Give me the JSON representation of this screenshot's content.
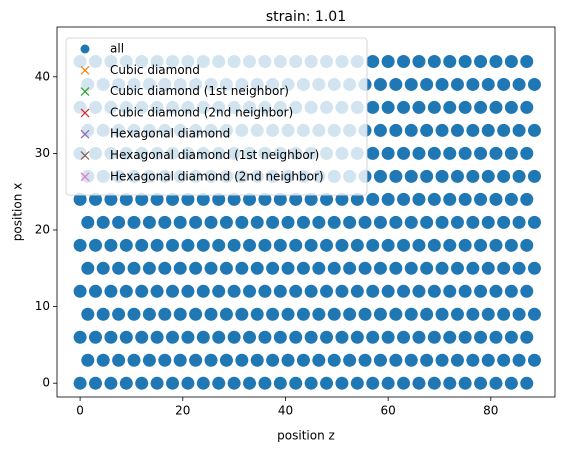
{
  "chart_data": {
    "type": "scatter",
    "title": "strain: 1.01",
    "x_label": "position z",
    "y_label": "position x",
    "xlim": [
      -4.5,
      92.5
    ],
    "ylim": [
      -1.8,
      46.5
    ],
    "xticks": [
      0,
      20,
      40,
      60,
      80
    ],
    "yticks": [
      0,
      10,
      20,
      30,
      40
    ],
    "legend": "upper left",
    "series": [
      {
        "name": "all",
        "color": "#1f77b4",
        "marker": "o",
        "x": [
          0,
          3,
          6,
          9,
          12,
          15,
          18,
          21,
          24,
          27,
          30,
          33,
          36,
          39,
          42,
          45,
          48,
          51,
          54,
          57,
          60,
          63,
          66,
          69,
          72,
          75,
          78,
          81,
          84,
          87,
          1.5,
          4.5,
          7.5,
          10.5,
          13.5,
          16.5,
          19.5,
          22.5,
          25.5,
          28.5,
          31.5,
          34.5,
          37.5,
          40.5,
          43.5,
          46.5,
          49.5,
          52.5,
          55.5,
          58.5,
          61.5,
          64.5,
          67.5,
          70.5,
          73.5,
          76.5,
          79.5,
          82.5,
          85.5,
          88.5,
          0,
          3,
          6,
          9,
          12,
          15,
          18,
          21,
          24,
          27,
          30,
          33,
          36,
          39,
          42,
          45,
          48,
          51,
          54,
          57,
          60,
          63,
          66,
          69,
          72,
          75,
          78,
          81,
          84,
          87,
          1.5,
          4.5,
          7.5,
          10.5,
          13.5,
          16.5,
          19.5,
          22.5,
          25.5,
          28.5,
          31.5,
          34.5,
          37.5,
          40.5,
          43.5,
          46.5,
          49.5,
          52.5,
          55.5,
          58.5,
          61.5,
          64.5,
          67.5,
          70.5,
          73.5,
          76.5,
          79.5,
          82.5,
          85.5,
          88.5,
          0,
          3,
          6,
          9,
          12,
          15,
          18,
          21,
          24,
          27,
          30,
          33,
          36,
          39,
          42,
          45,
          48,
          51,
          54,
          57,
          60,
          63,
          66,
          69,
          72,
          75,
          78,
          81,
          84,
          87,
          1.5,
          4.5,
          7.5,
          10.5,
          13.5,
          16.5,
          19.5,
          22.5,
          25.5,
          28.5,
          31.5,
          34.5,
          37.5,
          40.5,
          43.5,
          46.5,
          49.5,
          52.5,
          55.5,
          58.5,
          61.5,
          64.5,
          67.5,
          70.5,
          73.5,
          76.5,
          79.5,
          82.5,
          85.5,
          88.5,
          0,
          3,
          6,
          9,
          12,
          15,
          18,
          21,
          24,
          27,
          30,
          33,
          36,
          39,
          42,
          45,
          48,
          51,
          54,
          57,
          60,
          63,
          66,
          69,
          72,
          75,
          78,
          81,
          84,
          87,
          1.5,
          4.5,
          7.5,
          10.5,
          13.5,
          16.5,
          19.5,
          22.5,
          25.5,
          28.5,
          31.5,
          34.5,
          37.5,
          40.5,
          43.5,
          46.5,
          49.5,
          52.5,
          55.5,
          58.5,
          61.5,
          64.5,
          67.5,
          70.5,
          73.5,
          76.5,
          79.5,
          82.5,
          85.5,
          88.5,
          0,
          3,
          6,
          9,
          12,
          15,
          18,
          21,
          24,
          27,
          30,
          33,
          36,
          39,
          42,
          45,
          48,
          51,
          54,
          57,
          60,
          63,
          66,
          69,
          72,
          75,
          78,
          81,
          84,
          87,
          1.5,
          4.5,
          7.5,
          10.5,
          13.5,
          16.5,
          19.5,
          22.5,
          25.5,
          28.5,
          31.5,
          34.5,
          37.5,
          40.5,
          43.5,
          46.5,
          49.5,
          52.5,
          55.5,
          58.5,
          61.5,
          64.5,
          67.5,
          70.5,
          73.5,
          76.5,
          79.5,
          82.5,
          85.5,
          88.5,
          0,
          3,
          6,
          9,
          12,
          15,
          18,
          21,
          24,
          27,
          30,
          33,
          36,
          39,
          42,
          45,
          48,
          51,
          54,
          57,
          60,
          63,
          66,
          69,
          72,
          75,
          78,
          81,
          84,
          87,
          1.5,
          4.5,
          7.5,
          10.5,
          13.5,
          16.5,
          19.5,
          22.5,
          25.5,
          28.5,
          31.5,
          34.5,
          37.5,
          40.5,
          43.5,
          46.5,
          49.5,
          52.5,
          55.5,
          58.5,
          61.5,
          64.5,
          67.5,
          70.5,
          73.5,
          76.5,
          79.5,
          82.5,
          85.5,
          88.5,
          0,
          3,
          6,
          9,
          12,
          15,
          18,
          21,
          24,
          27,
          30,
          33,
          36,
          39,
          42,
          45,
          48,
          51,
          54,
          57,
          60,
          63,
          66,
          69,
          72,
          75,
          78,
          81,
          84,
          87,
          1.5,
          4.5,
          7.5,
          10.5,
          13.5,
          16.5,
          19.5,
          22.5,
          25.5,
          28.5,
          31.5,
          34.5,
          37.5,
          40.5,
          43.5,
          46.5,
          49.5,
          52.5,
          55.5,
          58.5,
          61.5,
          64.5,
          67.5,
          70.5,
          73.5,
          76.5,
          79.5,
          82.5,
          85.5,
          88.5,
          0,
          3,
          6,
          9,
          12,
          15,
          18,
          21,
          24,
          27,
          30,
          33,
          36,
          39,
          42,
          45,
          48,
          51,
          54,
          57,
          60,
          63,
          66,
          69,
          72,
          75,
          78,
          81,
          84,
          87
        ],
        "y": [
          0,
          0,
          0,
          0,
          0,
          0,
          0,
          0,
          0,
          0,
          0,
          0,
          0,
          0,
          0,
          0,
          0,
          0,
          0,
          0,
          0,
          0,
          0,
          0,
          0,
          0,
          0,
          0,
          0,
          0,
          3,
          3,
          3,
          3,
          3,
          3,
          3,
          3,
          3,
          3,
          3,
          3,
          3,
          3,
          3,
          3,
          3,
          3,
          3,
          3,
          3,
          3,
          3,
          3,
          3,
          3,
          3,
          3,
          3,
          3,
          6,
          6,
          6,
          6,
          6,
          6,
          6,
          6,
          6,
          6,
          6,
          6,
          6,
          6,
          6,
          6,
          6,
          6,
          6,
          6,
          6,
          6,
          6,
          6,
          6,
          6,
          6,
          6,
          6,
          6,
          9,
          9,
          9,
          9,
          9,
          9,
          9,
          9,
          9,
          9,
          9,
          9,
          9,
          9,
          9,
          9,
          9,
          9,
          9,
          9,
          9,
          9,
          9,
          9,
          9,
          9,
          9,
          9,
          9,
          9,
          12,
          12,
          12,
          12,
          12,
          12,
          12,
          12,
          12,
          12,
          12,
          12,
          12,
          12,
          12,
          12,
          12,
          12,
          12,
          12,
          12,
          12,
          12,
          12,
          12,
          12,
          12,
          12,
          12,
          12,
          15,
          15,
          15,
          15,
          15,
          15,
          15,
          15,
          15,
          15,
          15,
          15,
          15,
          15,
          15,
          15,
          15,
          15,
          15,
          15,
          15,
          15,
          15,
          15,
          15,
          15,
          15,
          15,
          15,
          15,
          18,
          18,
          18,
          18,
          18,
          18,
          18,
          18,
          18,
          18,
          18,
          18,
          18,
          18,
          18,
          18,
          18,
          18,
          18,
          18,
          18,
          18,
          18,
          18,
          18,
          18,
          18,
          18,
          18,
          18,
          21,
          21,
          21,
          21,
          21,
          21,
          21,
          21,
          21,
          21,
          21,
          21,
          21,
          21,
          21,
          21,
          21,
          21,
          21,
          21,
          21,
          21,
          21,
          21,
          21,
          21,
          21,
          21,
          21,
          21,
          24,
          24,
          24,
          24,
          24,
          24,
          24,
          24,
          24,
          24,
          24,
          24,
          24,
          24,
          24,
          24,
          24,
          24,
          24,
          24,
          24,
          24,
          24,
          24,
          24,
          24,
          24,
          24,
          24,
          24,
          27,
          27,
          27,
          27,
          27,
          27,
          27,
          27,
          27,
          27,
          27,
          27,
          27,
          27,
          27,
          27,
          27,
          27,
          27,
          27,
          27,
          27,
          27,
          27,
          27,
          27,
          27,
          27,
          27,
          27,
          30,
          30,
          30,
          30,
          30,
          30,
          30,
          30,
          30,
          30,
          30,
          30,
          30,
          30,
          30,
          30,
          30,
          30,
          30,
          30,
          30,
          30,
          30,
          30,
          30,
          30,
          30,
          30,
          30,
          30,
          33,
          33,
          33,
          33,
          33,
          33,
          33,
          33,
          33,
          33,
          33,
          33,
          33,
          33,
          33,
          33,
          33,
          33,
          33,
          33,
          33,
          33,
          33,
          33,
          33,
          33,
          33,
          33,
          33,
          33,
          36,
          36,
          36,
          36,
          36,
          36,
          36,
          36,
          36,
          36,
          36,
          36,
          36,
          36,
          36,
          36,
          36,
          36,
          36,
          36,
          36,
          36,
          36,
          36,
          36,
          36,
          36,
          36,
          36,
          36,
          39,
          39,
          39,
          39,
          39,
          39,
          39,
          39,
          39,
          39,
          39,
          39,
          39,
          39,
          39,
          39,
          39,
          39,
          39,
          39,
          39,
          39,
          39,
          39,
          39,
          39,
          39,
          39,
          39,
          39,
          42,
          42,
          42,
          42,
          42,
          42,
          42,
          42,
          42,
          42,
          42,
          42,
          42,
          42,
          42,
          42,
          42,
          42,
          42,
          42,
          42,
          42,
          42,
          42,
          42,
          42,
          42,
          42,
          42,
          42
        ]
      },
      {
        "name": "Cubic diamond",
        "color": "#ff7f0e",
        "marker": "x",
        "x": [],
        "y": []
      },
      {
        "name": "Cubic diamond (1st neighbor)",
        "color": "#2ca02c",
        "marker": "x",
        "x": [],
        "y": []
      },
      {
        "name": "Cubic diamond (2nd neighbor)",
        "color": "#d62728",
        "marker": "x",
        "x": [],
        "y": []
      },
      {
        "name": "Hexagonal diamond",
        "color": "#9467bd",
        "marker": "x",
        "x": [],
        "y": []
      },
      {
        "name": "Hexagonal diamond (1st neighbor)",
        "color": "#8c564b",
        "marker": "x",
        "x": [],
        "y": []
      },
      {
        "name": "Hexagonal diamond (2nd neighbor)",
        "color": "#e377c2",
        "marker": "x",
        "x": [],
        "y": []
      }
    ]
  }
}
